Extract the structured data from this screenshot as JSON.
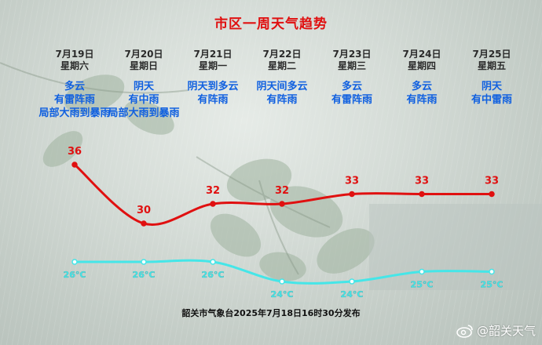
{
  "title": "市区一周天气趋势",
  "days": [
    {
      "date": "7月19日",
      "weekday": "星期六",
      "weather": [
        "多云",
        "有雷阵雨",
        "局部大雨到暴雨"
      ]
    },
    {
      "date": "7月20日",
      "weekday": "星期日",
      "weather": [
        "阴天",
        "有中雨",
        "局部大雨到暴雨"
      ]
    },
    {
      "date": "7月21日",
      "weekday": "星期一",
      "weather": [
        "阴天到多云",
        "有阵雨"
      ]
    },
    {
      "date": "7月22日",
      "weekday": "星期二",
      "weather": [
        "阴天间多云",
        "有阵雨"
      ]
    },
    {
      "date": "7月23日",
      "weekday": "星期三",
      "weather": [
        "多云",
        "有雷阵雨"
      ]
    },
    {
      "date": "7月24日",
      "weekday": "星期四",
      "weather": [
        "多云",
        "有阵雨"
      ]
    },
    {
      "date": "7月25日",
      "weekday": "星期五",
      "weather": [
        "阴天",
        "有中雷雨"
      ]
    }
  ],
  "chart_data": {
    "type": "line",
    "categories": [
      "7月19日",
      "7月20日",
      "7月21日",
      "7月22日",
      "7月23日",
      "7月24日",
      "7月25日"
    ],
    "series": [
      {
        "values": [
          36,
          30,
          32,
          32,
          33,
          33,
          33
        ],
        "color": "#e01010",
        "label_format": "{v}"
      },
      {
        "values": [
          26,
          26,
          26,
          24,
          24,
          25,
          25
        ],
        "color": "#45e6e8",
        "label_format": "{v}°C"
      }
    ]
  },
  "colors": {
    "title": "#e01010",
    "weather_text": "#1060e0",
    "high_line": "#e01010",
    "low_line": "#45e6e8"
  },
  "footer": "韶关市气象台2025年7月18日16时30分发布",
  "watermark": {
    "icon": "weibo-icon",
    "text": "@韶关天气"
  }
}
